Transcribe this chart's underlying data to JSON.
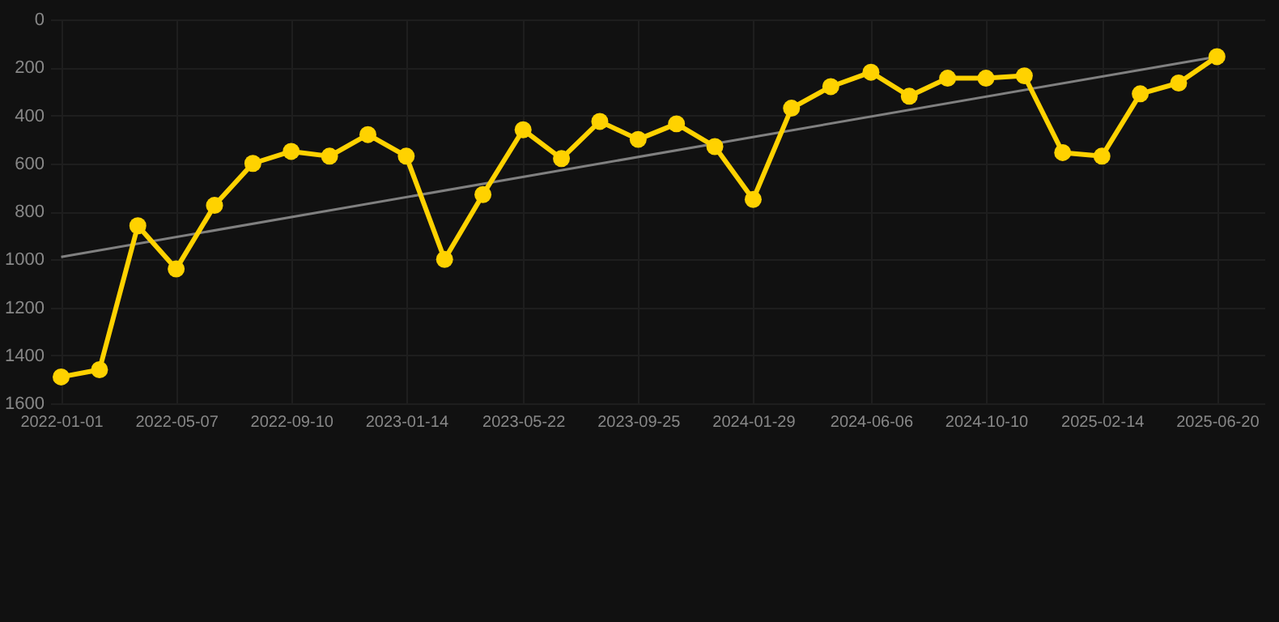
{
  "chart_data": {
    "type": "line",
    "x": [
      "2022-01-01",
      "2022-02-12",
      "2022-03-26",
      "2022-05-07",
      "2022-06-18",
      "2022-07-30",
      "2022-09-10",
      "2022-10-22",
      "2022-12-03",
      "2023-01-14",
      "2023-02-25",
      "2023-04-08",
      "2023-05-22",
      "2023-07-03",
      "2023-08-14",
      "2023-09-25",
      "2023-11-06",
      "2023-12-18",
      "2024-01-29",
      "2024-03-11",
      "2024-04-23",
      "2024-06-06",
      "2024-07-18",
      "2024-08-29",
      "2024-10-10",
      "2024-11-21",
      "2025-01-02",
      "2025-02-14",
      "2025-03-28",
      "2025-05-09",
      "2025-06-20"
    ],
    "series": [
      {
        "type": "line",
        "color": "#808080",
        "marker": "none",
        "x": [
          "2022-01-01",
          "2025-06-20"
        ],
        "values": [
          990,
          155
        ]
      },
      {
        "color": "#ffd200",
        "marker": "circle",
        "values": [
          1490,
          1460,
          860,
          1040,
          775,
          600,
          550,
          570,
          480,
          570,
          1000,
          730,
          460,
          580,
          425,
          500,
          435,
          530,
          750,
          370,
          280,
          220,
          320,
          245,
          245,
          235,
          555,
          570,
          310,
          265,
          155
        ]
      }
    ],
    "xlim": [
      "2021-12-20",
      "2025-08-11"
    ],
    "xticks": [
      "2022-01-01",
      "2022-05-07",
      "2022-09-10",
      "2023-01-14",
      "2023-05-22",
      "2023-09-25",
      "2024-01-29",
      "2024-06-06",
      "2024-10-10",
      "2025-02-14",
      "2025-06-20"
    ],
    "ylim": [
      1600,
      0
    ],
    "yticks": [
      0,
      200,
      400,
      600,
      800,
      1000,
      1200,
      1400,
      1600
    ],
    "grid": true,
    "line_style": "solid"
  }
}
